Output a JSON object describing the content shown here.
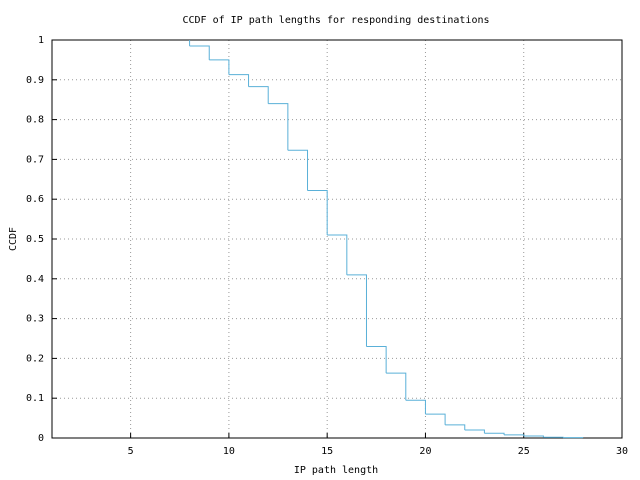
{
  "chart_data": {
    "type": "step",
    "title": "CCDF of IP path lengths for responding destinations",
    "x_label": "IP path length",
    "y_label": "CCDF",
    "x": [
      8,
      8,
      9,
      10,
      11,
      12,
      13,
      14,
      15,
      16,
      17,
      18,
      19,
      20,
      21,
      22,
      23,
      24,
      25,
      26,
      27,
      28
    ],
    "values": [
      1,
      0.985,
      0.95,
      0.913,
      0.883,
      0.84,
      0.723,
      0.622,
      0.51,
      0.41,
      0.23,
      0.163,
      0.095,
      0.06,
      0.033,
      0.02,
      0.012,
      0.008,
      0.005,
      0.002,
      0.001,
      0
    ],
    "color": "#5ab0d8",
    "xlim": [
      1,
      30
    ],
    "xticks": [
      5,
      10,
      15,
      20,
      25,
      30
    ],
    "ylim": [
      0,
      1
    ],
    "yticks": [
      0,
      0.1,
      0.2,
      0.3,
      0.4,
      0.5,
      0.6,
      0.7,
      0.8,
      0.9,
      1
    ],
    "grid": true
  }
}
